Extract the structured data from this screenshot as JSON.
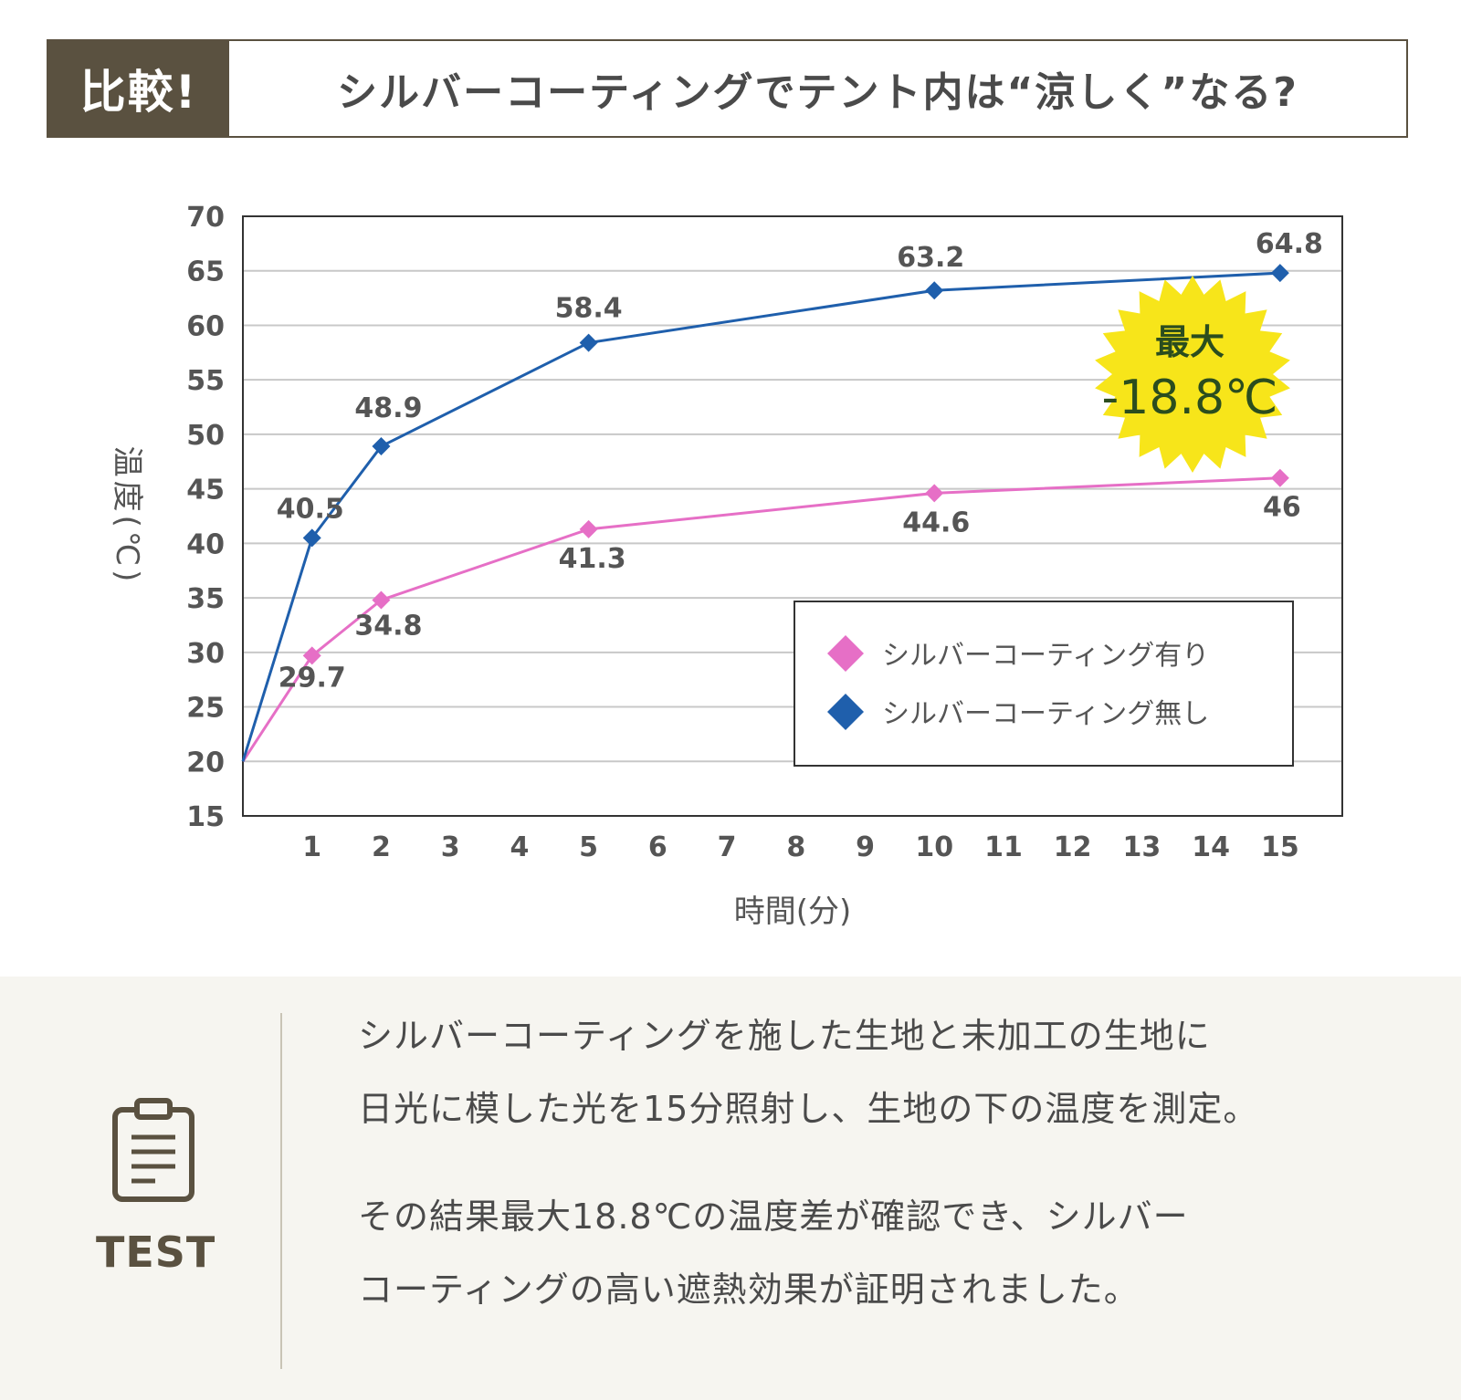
{
  "header": {
    "badge": "比較!",
    "title": "シルバーコーティングでテント内は“涼しく”なる?"
  },
  "chart_data": {
    "type": "line",
    "x": [
      0,
      1,
      2,
      5,
      10,
      15
    ],
    "x_ticks": [
      1,
      2,
      3,
      4,
      5,
      6,
      7,
      8,
      9,
      10,
      11,
      12,
      13,
      14,
      15
    ],
    "y_ticks": [
      15,
      20,
      25,
      30,
      35,
      40,
      45,
      50,
      55,
      60,
      65,
      70
    ],
    "xlim": [
      0,
      15.9
    ],
    "ylim": [
      15,
      70
    ],
    "xlabel": "時間(分)",
    "ylabel": "温度(℃)",
    "grid": true,
    "legend_position": "bottom-right",
    "series": [
      {
        "name": "シルバーコーティング有り",
        "color": "#e66fc6",
        "marker": "diamond",
        "values": [
          20,
          29.7,
          34.8,
          41.3,
          44.6,
          46
        ],
        "labels": [
          "",
          "29.7",
          "34.8",
          "41.3",
          "44.6",
          "46"
        ]
      },
      {
        "name": "シルバーコーティング無し",
        "color": "#1f5fac",
        "marker": "diamond",
        "values": [
          20,
          40.5,
          48.9,
          58.4,
          63.2,
          64.8
        ],
        "labels": [
          "",
          "40.5",
          "48.9",
          "58.4",
          "63.2",
          "64.8"
        ]
      }
    ],
    "annotation": {
      "line1": "最大",
      "line2": "-18.8℃"
    }
  },
  "footer": {
    "icon": "clipboard-icon",
    "label": "TEST",
    "paragraph1": [
      "シルバーコーティングを施した生地と未加工の生地に",
      "日光に模した光を15分照射し、生地の下の温度を測定。"
    ],
    "paragraph2": [
      "その結果最大18.8℃の温度差が確認でき、シルバー",
      "コーティングの高い遮熱効果が証明されました。"
    ]
  }
}
